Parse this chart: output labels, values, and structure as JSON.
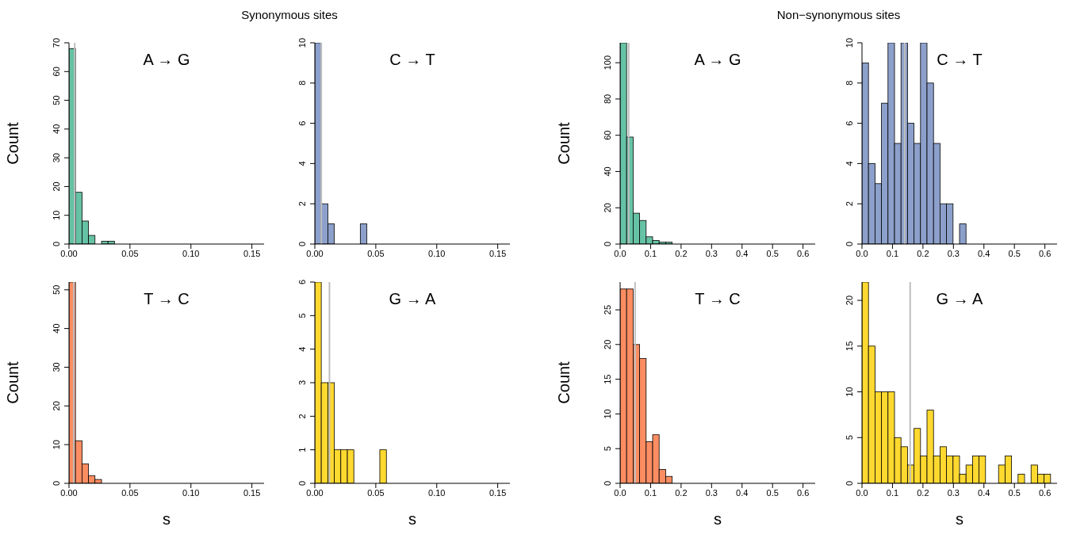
{
  "chart_data": [
    {
      "type": "histogram",
      "title": "A → G",
      "annotations": [
        "Synonymous sites"
      ],
      "ylabel": "Count",
      "color": "#66c2a5",
      "bins": [
        0,
        0.0053,
        0.0107,
        0.016,
        0.0213,
        0.0267,
        0.032,
        0.0373,
        0.0427,
        0.048,
        0.0533,
        0.0587,
        0.064,
        0.0693,
        0.0747,
        0.08,
        0.0853,
        0.0907,
        0.096,
        0.1013,
        0.1067,
        0.112,
        0.1173,
        0.1227,
        0.128,
        0.1333,
        0.1387,
        0.144,
        0.1493,
        0.1547,
        0.16
      ],
      "values": [
        68,
        18,
        8,
        3,
        0,
        1,
        1,
        0,
        0,
        0,
        0,
        0,
        0,
        0,
        0,
        0,
        0,
        0,
        0,
        0,
        0,
        0,
        0,
        0,
        0,
        0,
        0,
        0,
        0,
        0
      ],
      "xlim": [
        0,
        0.16
      ],
      "xticks": [
        {
          "value": 0,
          "label": "0.00"
        },
        {
          "value": 0.05,
          "label": "0.05"
        },
        {
          "value": 0.1,
          "label": "0.10"
        },
        {
          "value": 0.15,
          "label": "0.15"
        }
      ],
      "ylim": [
        0,
        70
      ],
      "yticks": [
        0,
        10,
        20,
        30,
        40,
        50,
        60,
        70
      ],
      "ref_lines": [
        {
          "axis": "x",
          "value": 0.0047,
          "color": "#bebebe"
        }
      ]
    },
    {
      "type": "histogram",
      "title": "C → T",
      "color": "#8da0cb",
      "bins": [
        0,
        0.0053,
        0.0107,
        0.016,
        0.0213,
        0.0267,
        0.032,
        0.0373,
        0.0427,
        0.048,
        0.0533,
        0.0587,
        0.064,
        0.0693,
        0.0747,
        0.08,
        0.0853,
        0.0907,
        0.096,
        0.1013,
        0.1067,
        0.112,
        0.1173,
        0.1227,
        0.128,
        0.1333,
        0.1387,
        0.144,
        0.1493,
        0.1547,
        0.16
      ],
      "values": [
        10,
        2,
        1,
        0,
        0,
        0,
        0,
        1,
        0,
        0,
        0,
        0,
        0,
        0,
        0,
        0,
        0,
        0,
        0,
        0,
        0,
        0,
        0,
        0,
        0,
        0,
        0,
        0,
        0,
        0
      ],
      "xlim": [
        0,
        0.16
      ],
      "xticks": [
        {
          "value": 0,
          "label": "0.00"
        },
        {
          "value": 0.05,
          "label": "0.05"
        },
        {
          "value": 0.1,
          "label": "0.10"
        },
        {
          "value": 0.15,
          "label": "0.15"
        }
      ],
      "ylim": [
        0,
        10
      ],
      "yticks": [
        0,
        2,
        4,
        6,
        8,
        10
      ],
      "ref_lines": [
        {
          "axis": "x",
          "value": 0.0053,
          "color": "#bebebe"
        }
      ]
    },
    {
      "type": "histogram",
      "title": "A → G",
      "annotations": [
        "Non−synonymous sites"
      ],
      "ylabel": "Count",
      "color": "#66c2a5",
      "bins": [
        0,
        0.0213,
        0.0427,
        0.064,
        0.0853,
        0.1067,
        0.128,
        0.1493,
        0.1707,
        0.192,
        0.2133,
        0.2347,
        0.256,
        0.2773,
        0.2987,
        0.32,
        0.3413,
        0.3627,
        0.384,
        0.4053,
        0.4267,
        0.448,
        0.4693,
        0.4907,
        0.512,
        0.5333,
        0.5547,
        0.576,
        0.5973,
        0.6187,
        0.64
      ],
      "values": [
        111,
        59,
        17,
        13,
        4,
        2,
        1,
        1,
        0,
        0,
        0,
        0,
        0,
        0,
        0,
        0,
        0,
        0,
        0,
        0,
        0,
        0,
        0,
        0,
        0,
        0,
        0,
        0,
        0,
        0
      ],
      "xlim": [
        0,
        0.64
      ],
      "xticks": [
        {
          "value": 0,
          "label": "0.0"
        },
        {
          "value": 0.1,
          "label": "0.1"
        },
        {
          "value": 0.2,
          "label": "0.2"
        },
        {
          "value": 0.3,
          "label": "0.3"
        },
        {
          "value": 0.4,
          "label": "0.4"
        },
        {
          "value": 0.5,
          "label": "0.5"
        },
        {
          "value": 0.6,
          "label": "0.6"
        }
      ],
      "ylim": [
        0,
        111
      ],
      "yticks": [
        0,
        20,
        40,
        60,
        80,
        100
      ],
      "ref_lines": [
        {
          "axis": "x",
          "value": 0.028,
          "color": "#bebebe"
        }
      ]
    },
    {
      "type": "histogram",
      "title": "C → T",
      "color": "#8da0cb",
      "bins": [
        0,
        0.0213,
        0.0427,
        0.064,
        0.0853,
        0.1067,
        0.128,
        0.1493,
        0.1707,
        0.192,
        0.2133,
        0.2347,
        0.256,
        0.2773,
        0.2987,
        0.32,
        0.3413,
        0.3627,
        0.384,
        0.4053,
        0.4267,
        0.448,
        0.4693,
        0.4907,
        0.512,
        0.5333,
        0.5547,
        0.576,
        0.5973,
        0.6187,
        0.64
      ],
      "values": [
        9,
        4,
        3,
        7,
        10,
        5,
        10,
        6,
        5,
        10,
        8,
        5,
        2,
        2,
        0,
        1,
        0,
        0,
        0,
        0,
        0,
        0,
        0,
        0,
        0,
        0,
        0,
        0,
        0,
        0
      ],
      "xlim": [
        0,
        0.64
      ],
      "xticks": [
        {
          "value": 0,
          "label": "0.0"
        },
        {
          "value": 0.1,
          "label": "0.1"
        },
        {
          "value": 0.2,
          "label": "0.2"
        },
        {
          "value": 0.3,
          "label": "0.3"
        },
        {
          "value": 0.4,
          "label": "0.4"
        },
        {
          "value": 0.5,
          "label": "0.5"
        },
        {
          "value": 0.6,
          "label": "0.6"
        }
      ],
      "ylim": [
        0,
        10
      ],
      "yticks": [
        0,
        2,
        4,
        6,
        8,
        10
      ],
      "ref_lines": [
        {
          "axis": "x",
          "value": 0.14,
          "color": "#bebebe"
        }
      ]
    },
    {
      "type": "histogram",
      "title": "T → C",
      "ylabel": "Count",
      "xlabel": "s",
      "color": "#fc8d62",
      "bins": [
        0,
        0.0053,
        0.0107,
        0.016,
        0.0213,
        0.0267,
        0.032,
        0.0373,
        0.0427,
        0.048,
        0.0533,
        0.0587,
        0.064,
        0.0693,
        0.0747,
        0.08,
        0.0853,
        0.0907,
        0.096,
        0.1013,
        0.1067,
        0.112,
        0.1173,
        0.1227,
        0.128,
        0.1333,
        0.1387,
        0.144,
        0.1493,
        0.1547,
        0.16
      ],
      "values": [
        52,
        11,
        5,
        2,
        1,
        0,
        0,
        0,
        0,
        0,
        0,
        0,
        0,
        0,
        0,
        0,
        0,
        0,
        0,
        0,
        0,
        0,
        0,
        0,
        0,
        0,
        0,
        0,
        0,
        0
      ],
      "xlim": [
        0,
        0.16
      ],
      "xticks": [
        {
          "value": 0,
          "label": "0.00"
        },
        {
          "value": 0.05,
          "label": "0.05"
        },
        {
          "value": 0.1,
          "label": "0.10"
        },
        {
          "value": 0.15,
          "label": "0.15"
        }
      ],
      "ylim": [
        0,
        52
      ],
      "yticks": [
        0,
        10,
        20,
        30,
        40,
        50
      ],
      "ref_lines": [
        {
          "axis": "x",
          "value": 0.004,
          "color": "#bebebe"
        }
      ]
    },
    {
      "type": "histogram",
      "title": "G → A",
      "xlabel": "s",
      "color": "#ffd92f",
      "bins": [
        0,
        0.0053,
        0.0107,
        0.016,
        0.0213,
        0.0267,
        0.032,
        0.0373,
        0.0427,
        0.048,
        0.0533,
        0.0587,
        0.064,
        0.0693,
        0.0747,
        0.08,
        0.0853,
        0.0907,
        0.096,
        0.1013,
        0.1067,
        0.112,
        0.1173,
        0.1227,
        0.128,
        0.1333,
        0.1387,
        0.144,
        0.1493,
        0.1547,
        0.16
      ],
      "values": [
        6,
        3,
        3,
        1,
        1,
        1,
        0,
        0,
        0,
        0,
        1,
        0,
        0,
        0,
        0,
        0,
        0,
        0,
        0,
        0,
        0,
        0,
        0,
        0,
        0,
        0,
        0,
        0,
        0,
        0
      ],
      "xlim": [
        0,
        0.16
      ],
      "xticks": [
        {
          "value": 0,
          "label": "0.00"
        },
        {
          "value": 0.05,
          "label": "0.05"
        },
        {
          "value": 0.1,
          "label": "0.10"
        },
        {
          "value": 0.15,
          "label": "0.15"
        }
      ],
      "ylim": [
        0,
        6
      ],
      "yticks": [
        0,
        1,
        2,
        3,
        4,
        5,
        6
      ],
      "ref_lines": [
        {
          "axis": "x",
          "value": 0.012,
          "color": "#bebebe"
        }
      ]
    },
    {
      "type": "histogram",
      "title": "T → C",
      "ylabel": "Count",
      "xlabel": "s",
      "color": "#fc8d62",
      "bins": [
        0,
        0.0213,
        0.0427,
        0.064,
        0.0853,
        0.1067,
        0.128,
        0.1493,
        0.1707,
        0.192,
        0.2133,
        0.2347,
        0.256,
        0.2773,
        0.2987,
        0.32,
        0.3413,
        0.3627,
        0.384,
        0.4053,
        0.4267,
        0.448,
        0.4693,
        0.4907,
        0.512,
        0.5333,
        0.5547,
        0.576,
        0.5973,
        0.6187,
        0.64
      ],
      "values": [
        28,
        28,
        20,
        18,
        6,
        7,
        2,
        1,
        0,
        0,
        0,
        0,
        0,
        0,
        0,
        0,
        0,
        0,
        0,
        0,
        0,
        0,
        0,
        0,
        0,
        0,
        0,
        0,
        0,
        0
      ],
      "xlim": [
        0,
        0.64
      ],
      "xticks": [
        {
          "value": 0,
          "label": "0.0"
        },
        {
          "value": 0.1,
          "label": "0.1"
        },
        {
          "value": 0.2,
          "label": "0.2"
        },
        {
          "value": 0.3,
          "label": "0.3"
        },
        {
          "value": 0.4,
          "label": "0.4"
        },
        {
          "value": 0.5,
          "label": "0.5"
        },
        {
          "value": 0.6,
          "label": "0.6"
        }
      ],
      "ylim": [
        0,
        29
      ],
      "yticks": [
        0,
        5,
        10,
        15,
        20,
        25
      ],
      "ref_lines": [
        {
          "axis": "x",
          "value": 0.049,
          "color": "#bebebe"
        }
      ]
    },
    {
      "type": "histogram",
      "title": "G → A",
      "xlabel": "s",
      "color": "#ffd92f",
      "bins": [
        0,
        0.0213,
        0.0427,
        0.064,
        0.0853,
        0.1067,
        0.128,
        0.1493,
        0.1707,
        0.192,
        0.2133,
        0.2347,
        0.256,
        0.2773,
        0.2987,
        0.32,
        0.3413,
        0.3627,
        0.384,
        0.4053,
        0.4267,
        0.448,
        0.4693,
        0.4907,
        0.512,
        0.5333,
        0.5547,
        0.576,
        0.5973,
        0.6187,
        0.64
      ],
      "values": [
        22,
        15,
        10,
        10,
        10,
        5,
        4,
        2,
        6,
        3,
        8,
        3,
        4,
        3,
        3,
        1,
        2,
        3,
        3,
        0,
        0,
        2,
        3,
        0,
        1,
        0,
        2,
        1,
        1,
        0
      ],
      "xlim": [
        0,
        0.64
      ],
      "xticks": [
        {
          "value": 0,
          "label": "0.0"
        },
        {
          "value": 0.1,
          "label": "0.1"
        },
        {
          "value": 0.2,
          "label": "0.2"
        },
        {
          "value": 0.3,
          "label": "0.3"
        },
        {
          "value": 0.4,
          "label": "0.4"
        },
        {
          "value": 0.5,
          "label": "0.5"
        },
        {
          "value": 0.6,
          "label": "0.6"
        }
      ],
      "ylim": [
        0,
        22
      ],
      "yticks": [
        0,
        5,
        10,
        15,
        20
      ],
      "ref_lines": [
        {
          "axis": "x",
          "value": 0.158,
          "color": "#bebebe"
        }
      ]
    }
  ]
}
